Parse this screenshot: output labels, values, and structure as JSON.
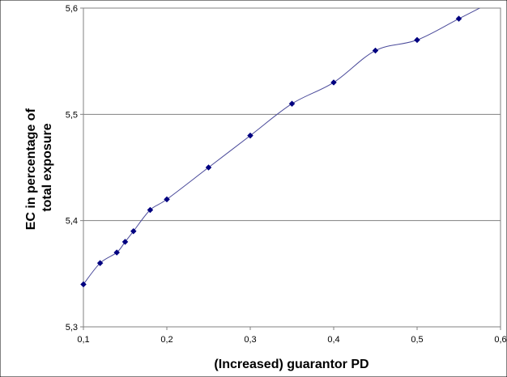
{
  "chart_data": {
    "type": "line",
    "title": "",
    "xlabel": "(Increased) guarantor PD",
    "ylabel": "EC in percentage of total exposure",
    "ylabel_lines": [
      "EC in percentage of",
      "total exposure"
    ],
    "xlim": [
      0.1,
      0.6
    ],
    "ylim": [
      5.3,
      5.6
    ],
    "x_ticks": [
      0.1,
      0.2,
      0.3,
      0.4,
      0.5,
      0.6
    ],
    "x_tick_labels": [
      "0,1",
      "0,2",
      "0,3",
      "0,4",
      "0,5",
      "0,6"
    ],
    "y_ticks": [
      5.3,
      5.4,
      5.5,
      5.6
    ],
    "y_tick_labels": [
      "5,3",
      "5,4",
      "5,5",
      "5,6"
    ],
    "grid": "horizontal",
    "legend": "none",
    "smooth": true,
    "series": [
      {
        "x": [
          0.1,
          0.12,
          0.14,
          0.15,
          0.16,
          0.18,
          0.2,
          0.25,
          0.3,
          0.35,
          0.4,
          0.45,
          0.5,
          0.55,
          0.6
        ],
        "y": [
          5.34,
          5.36,
          5.37,
          5.38,
          5.39,
          5.41,
          5.42,
          5.45,
          5.48,
          5.51,
          5.53,
          5.56,
          5.57,
          5.59,
          5.61
        ],
        "color": "#4a4a9a",
        "marker_color": "#000080"
      }
    ]
  }
}
